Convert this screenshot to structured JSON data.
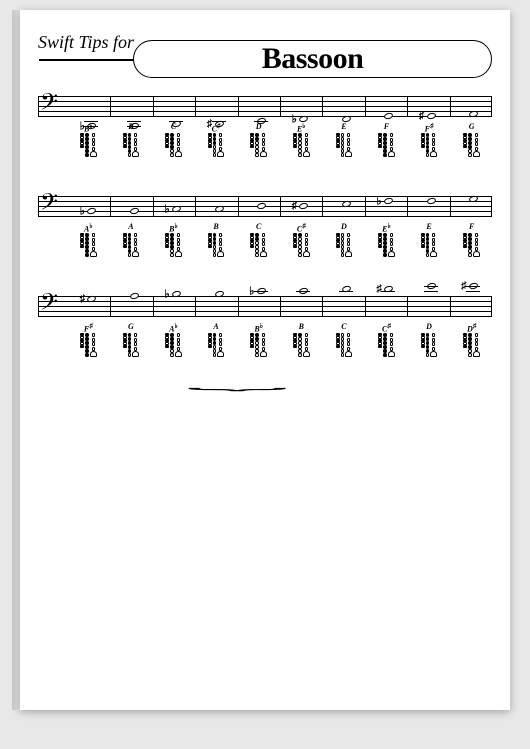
{
  "header": {
    "swift_tips": "Swift Tips for",
    "title": "Bassoon"
  },
  "colors": {
    "page_bg": "#ffffff",
    "outer_bg": "#e8e8e8",
    "line": "#000000"
  },
  "rows": [
    {
      "notes": [
        {
          "label": "B",
          "acc": "♭",
          "staff_acc": "♭",
          "y": 30
        },
        {
          "label": "B",
          "acc": "",
          "staff_acc": "",
          "y": 30
        },
        {
          "label": "C",
          "acc": "",
          "staff_acc": "",
          "y": 28
        },
        {
          "label": "C",
          "acc": "♯",
          "staff_acc": "♯",
          "y": 28
        },
        {
          "label": "D",
          "acc": "",
          "staff_acc": "",
          "y": 25
        },
        {
          "label": "E",
          "acc": "♭",
          "staff_acc": "♭",
          "y": 23
        },
        {
          "label": "E",
          "acc": "",
          "staff_acc": "",
          "y": 23
        },
        {
          "label": "F",
          "acc": "",
          "staff_acc": "",
          "y": 20
        },
        {
          "label": "F",
          "acc": "♯",
          "staff_acc": "♯",
          "y": 20
        },
        {
          "label": "G",
          "acc": "",
          "staff_acc": "",
          "y": 18
        }
      ]
    },
    {
      "notes": [
        {
          "label": "A",
          "acc": "♭",
          "staff_acc": "♭",
          "y": 15
        },
        {
          "label": "A",
          "acc": "",
          "staff_acc": "",
          "y": 15
        },
        {
          "label": "B",
          "acc": "♭",
          "staff_acc": "♭",
          "y": 13
        },
        {
          "label": "B",
          "acc": "",
          "staff_acc": "",
          "y": 13
        },
        {
          "label": "C",
          "acc": "",
          "staff_acc": "",
          "y": 10
        },
        {
          "label": "C",
          "acc": "♯",
          "staff_acc": "♯",
          "y": 10
        },
        {
          "label": "D",
          "acc": "",
          "staff_acc": "",
          "y": 8
        },
        {
          "label": "E",
          "acc": "♭",
          "staff_acc": "♭",
          "y": 5
        },
        {
          "label": "E",
          "acc": "",
          "staff_acc": "",
          "y": 5
        },
        {
          "label": "F",
          "acc": "",
          "staff_acc": "",
          "y": 3
        }
      ]
    },
    {
      "notes": [
        {
          "label": "F",
          "acc": "♯",
          "staff_acc": "♯",
          "y": 3
        },
        {
          "label": "G",
          "acc": "",
          "staff_acc": "",
          "y": 0
        },
        {
          "label": "A",
          "acc": "♭",
          "staff_acc": "♭",
          "y": -2
        },
        {
          "label": "A",
          "acc": "",
          "staff_acc": "",
          "y": -2
        },
        {
          "label": "B",
          "acc": "♭",
          "staff_acc": "♭",
          "y": -5
        },
        {
          "label": "B",
          "acc": "",
          "staff_acc": "",
          "y": -5
        },
        {
          "label": "C",
          "acc": "",
          "staff_acc": "",
          "y": -7
        },
        {
          "label": "C",
          "acc": "♯",
          "staff_acc": "♯",
          "y": -7
        },
        {
          "label": "D",
          "acc": "",
          "staff_acc": "",
          "y": -10
        },
        {
          "label": "D",
          "acc": "♯",
          "staff_acc": "♯",
          "y": -10
        }
      ],
      "brace_start": 2,
      "brace_end": 9
    }
  ],
  "fingering_pattern": {
    "left_thumb_keys": 4,
    "tone_holes": 6,
    "right_keys": 3
  }
}
